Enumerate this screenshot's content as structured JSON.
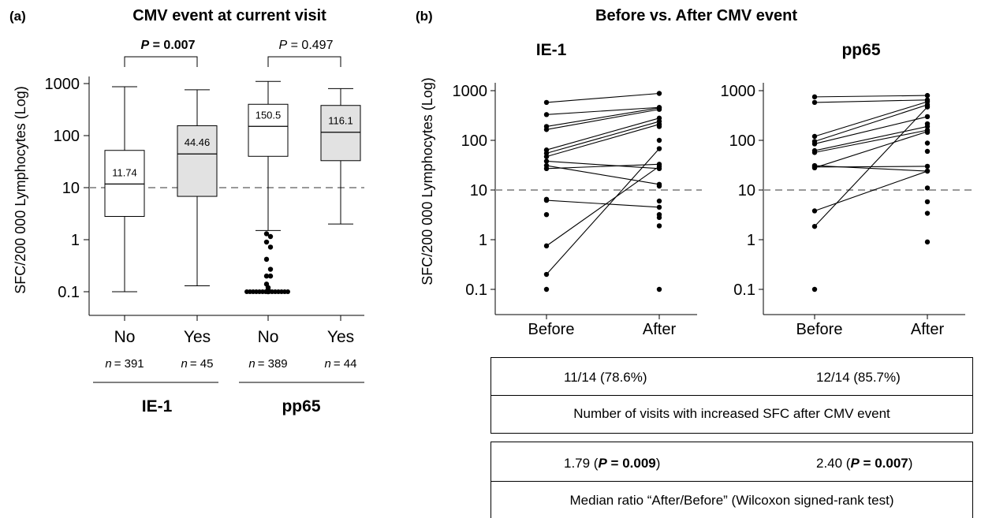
{
  "panel_a": {
    "label": "(a)",
    "title": "CMV event at current visit",
    "ylabel": "SFC/200 000 Lymphocytes (Log)",
    "yticks": [
      "1000",
      "100",
      "10",
      "1",
      "0.1"
    ],
    "groups": [
      {
        "cat": "No",
        "n": "n = 391",
        "median_label": "11.74"
      },
      {
        "cat": "Yes",
        "n": "n = 45",
        "median_label": "44.46"
      },
      {
        "cat": "No",
        "n": "n = 389",
        "median_label": "150.5"
      },
      {
        "cat": "Yes",
        "n": "n = 44",
        "median_label": "116.1"
      }
    ],
    "comparisons": [
      {
        "p_prefix": "P",
        "p_value": " = 0.007",
        "bold": true
      },
      {
        "p_prefix": "P",
        "p_value": " = 0.497",
        "bold": false
      }
    ],
    "antigens": [
      "IE-1",
      "pp65"
    ]
  },
  "panel_b": {
    "label": "(b)",
    "title": "Before vs. After CMV event",
    "ylabel": "SFC/200 000 Lymphocytes (Log)",
    "subplots": [
      {
        "title": "IE-1"
      },
      {
        "title": "pp65"
      }
    ],
    "xticks": [
      "Before",
      "After"
    ],
    "yticks": [
      "1000",
      "100",
      "10",
      "1",
      "0.1"
    ]
  },
  "table1": {
    "ie1": "11/14 (78.6%)",
    "pp65": "12/14 (85.7%)",
    "caption": "Number of visits with increased SFC after CMV event"
  },
  "table2": {
    "ie1_value": "1.79 (",
    "ie1_p": "P",
    "ie1_pval": " = 0.009",
    "ie1_close": ")",
    "pp65_value": "2.40 (",
    "pp65_p": "P",
    "pp65_pval": " = 0.007",
    "pp65_close": ")",
    "caption": "Median ratio “After/Before” (Wilcoxon signed-rank test)"
  },
  "colors": {
    "white_box": "#ffffff",
    "grey_box": "#e2e2e2",
    "dashed": "#999999"
  },
  "chart_data": [
    {
      "type": "box",
      "title": "CMV event at current visit",
      "ylabel": "SFC/200 000 Lymphocytes (Log)",
      "yscale": "log",
      "ylim": [
        0.1,
        1000
      ],
      "reference_line": 10,
      "categories": [
        "No (IE-1)",
        "Yes (IE-1)",
        "No (pp65)",
        "Yes (pp65)"
      ],
      "boxes": [
        {
          "whisker_low": 0.1,
          "q1": 2.8,
          "median": 11.74,
          "q3": 52,
          "whisker_high": 870,
          "fill": "white"
        },
        {
          "whisker_low": 0.13,
          "q1": 6.8,
          "median": 44.46,
          "q3": 155,
          "whisker_high": 760,
          "fill": "grey"
        },
        {
          "whisker_low": 1.5,
          "q1": 40,
          "median": 150.5,
          "q3": 400,
          "whisker_high": 1100,
          "fill": "white",
          "outliers": [
            1.3,
            1.15,
            0.9,
            0.72,
            0.42,
            0.27,
            0.2,
            0.2,
            0.14,
            0.12,
            0.11,
            0.11,
            0.1
          ]
        },
        {
          "whisker_low": 2.0,
          "q1": 33,
          "median": 116.1,
          "q3": 380,
          "whisker_high": 800,
          "fill": "grey"
        }
      ]
    },
    {
      "type": "paired-line",
      "title": "IE-1",
      "yscale": "log",
      "ylim": [
        0.1,
        1000
      ],
      "reference_line": 10,
      "pairs": [
        [
          580,
          880
        ],
        [
          330,
          460
        ],
        [
          190,
          450
        ],
        [
          165,
          420
        ],
        [
          64,
          280
        ],
        [
          55,
          240
        ],
        [
          47,
          210
        ],
        [
          38,
          27
        ],
        [
          31,
          13
        ],
        [
          27,
          33
        ],
        [
          6.2,
          4.5
        ],
        [
          0.75,
          30
        ],
        [
          0.2,
          68
        ]
      ],
      "unpaired_before": [
        3.2,
        6.5,
        0.1
      ],
      "unpaired_after": [
        100,
        190,
        12,
        6,
        3.2,
        2.8,
        1.9,
        0.1
      ]
    },
    {
      "type": "paired-line",
      "title": "pp65",
      "yscale": "log",
      "ylim": [
        0.1,
        1000
      ],
      "reference_line": 10,
      "pairs": [
        [
          750,
          800
        ],
        [
          580,
          650
        ],
        [
          120,
          600
        ],
        [
          95,
          520
        ],
        [
          85,
          300
        ],
        [
          62,
          190
        ],
        [
          57,
          160
        ],
        [
          31,
          24
        ],
        [
          29,
          30
        ],
        [
          28,
          150
        ],
        [
          3.8,
          24
        ],
        [
          1.85,
          470
        ]
      ],
      "unpaired_before": [
        0.1,
        30
      ],
      "unpaired_after": [
        215,
        145,
        88,
        60,
        11,
        5.8,
        3.4,
        0.9
      ]
    }
  ]
}
